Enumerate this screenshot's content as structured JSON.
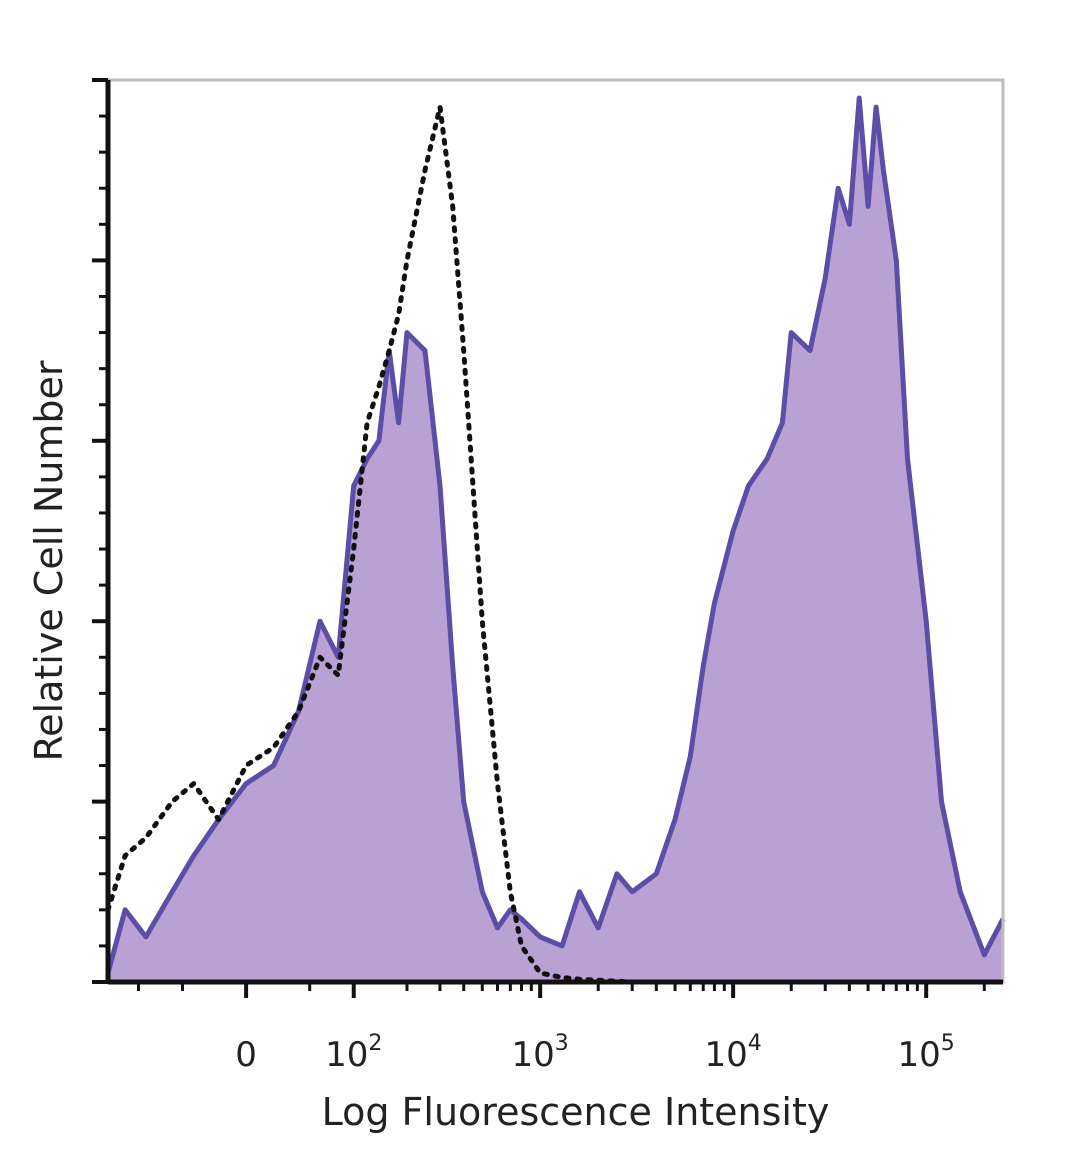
{
  "chart_data": {
    "type": "area",
    "xlabel": "Log Fluorescence Intensity",
    "ylabel": "Relative Cell Number",
    "x_scale": "biexponential (log with linear region near 0)",
    "x_ticks": [
      {
        "value": 0,
        "base": "0",
        "exp": ""
      },
      {
        "value": 100,
        "base": "10",
        "exp": "2"
      },
      {
        "value": 1000,
        "base": "10",
        "exp": "3"
      },
      {
        "value": 10000,
        "base": "10",
        "exp": "4"
      },
      {
        "value": 100000,
        "base": "10",
        "exp": "5"
      }
    ],
    "xlim": [
      -150,
      250000
    ],
    "ylim": [
      0,
      100
    ],
    "y_major_ticks": [
      0,
      20,
      40,
      60,
      80,
      100
    ],
    "grid": false,
    "legend": "none",
    "colors": {
      "stained_line": "#5a4ea6",
      "stained_fill": "#b9a2d3",
      "control_line": "#111111"
    },
    "series": [
      {
        "style": "filled-solid",
        "x": [
          -150,
          -120,
          -90,
          -60,
          -40,
          -20,
          0,
          20,
          40,
          60,
          80,
          100,
          120,
          140,
          160,
          180,
          200,
          250,
          300,
          350,
          400,
          500,
          600,
          700,
          800,
          1000,
          1300,
          1600,
          2000,
          2500,
          3000,
          4000,
          5000,
          6000,
          7000,
          8000,
          10000,
          12000,
          15000,
          18000,
          20000,
          25000,
          30000,
          35000,
          40000,
          45000,
          50000,
          55000,
          60000,
          70000,
          80000,
          100000,
          120000,
          150000,
          200000,
          250000
        ],
        "y": [
          1,
          8,
          5,
          10,
          14,
          18,
          22,
          24,
          30,
          40,
          36,
          55,
          58,
          60,
          70,
          62,
          72,
          70,
          55,
          35,
          20,
          10,
          6,
          8,
          7,
          5,
          4,
          10,
          6,
          12,
          10,
          12,
          18,
          25,
          35,
          42,
          50,
          55,
          58,
          62,
          72,
          70,
          78,
          88,
          84,
          98,
          86,
          97,
          90,
          80,
          58,
          40,
          20,
          10,
          3,
          7
        ]
      },
      {
        "style": "dotted",
        "x": [
          -150,
          -120,
          -90,
          -60,
          -40,
          -20,
          0,
          20,
          40,
          60,
          80,
          100,
          120,
          140,
          160,
          180,
          200,
          250,
          300,
          350,
          400,
          500,
          600,
          700,
          800,
          1000,
          1300,
          1600,
          2000,
          3000
        ],
        "y": [
          8,
          14,
          16,
          20,
          22,
          18,
          24,
          26,
          30,
          36,
          34,
          48,
          62,
          66,
          70,
          74,
          80,
          90,
          97,
          86,
          70,
          40,
          22,
          10,
          4,
          1,
          0.5,
          0.3,
          0.2,
          0
        ]
      }
    ]
  }
}
